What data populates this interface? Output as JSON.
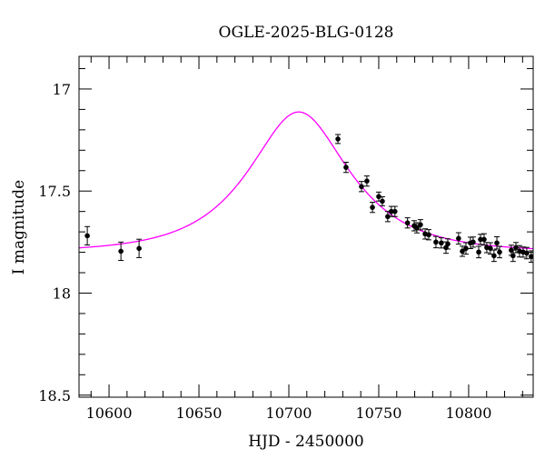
{
  "chart_data": {
    "type": "scatter",
    "title": "OGLE-2025-BLG-0128",
    "xlabel": "HJD - 2450000",
    "ylabel": "I magnitude",
    "xlim": [
      10583.3,
      10835.9
    ],
    "ylim": [
      18.51,
      16.84
    ],
    "y_inverted": true,
    "grid": false,
    "x_ticks": [
      10600,
      10650,
      10700,
      10750,
      10800
    ],
    "x_tick_labels": [
      "10600",
      "10650",
      "10700",
      "10750",
      "10800"
    ],
    "y_ticks": [
      17,
      17.5,
      18,
      18.5
    ],
    "y_tick_labels": [
      "17",
      "17.5",
      "18",
      "18.5"
    ],
    "x_minor_step": 10,
    "y_minor_step": 0.1,
    "colors": {
      "points": "#000000",
      "model": "#ff00ff",
      "frame": "#000000"
    },
    "series": [
      {
        "kind": "points-with-errorbars",
        "x": [
          10587.9,
          10606.6,
          10616.7,
          10727.3,
          10731.8,
          10740.4,
          10743.4,
          10746.5,
          10750.0,
          10752.0,
          10755.0,
          10757.0,
          10759.0,
          10766.0,
          10769.7,
          10771.2,
          10773.2,
          10775.8,
          10777.8,
          10781.8,
          10784.8,
          10787.4,
          10788.4,
          10794.4,
          10796.5,
          10798.5,
          10801.0,
          10802.5,
          10805.6,
          10806.6,
          10808.6,
          10810.1,
          10812.1,
          10814.1,
          10815.7,
          10817.2,
          10823.7,
          10824.7,
          10826.3,
          10828.3,
          10830.3,
          10832.3,
          10834.8
        ],
        "y": [
          17.719,
          17.795,
          17.781,
          17.245,
          17.384,
          17.478,
          17.451,
          17.58,
          17.527,
          17.55,
          17.625,
          17.6,
          17.6,
          17.656,
          17.67,
          17.68,
          17.665,
          17.71,
          17.714,
          17.75,
          17.754,
          17.777,
          17.759,
          17.732,
          17.795,
          17.781,
          17.754,
          17.75,
          17.799,
          17.737,
          17.737,
          17.777,
          17.781,
          17.817,
          17.754,
          17.799,
          17.79,
          17.817,
          17.777,
          17.795,
          17.799,
          17.804,
          17.821
        ],
        "yerr": [
          0.045,
          0.045,
          0.045,
          0.022,
          0.025,
          0.025,
          0.025,
          0.025,
          0.022,
          0.022,
          0.025,
          0.025,
          0.025,
          0.025,
          0.025,
          0.025,
          0.025,
          0.025,
          0.025,
          0.028,
          0.025,
          0.028,
          0.025,
          0.028,
          0.025,
          0.028,
          0.028,
          0.025,
          0.028,
          0.025,
          0.028,
          0.025,
          0.028,
          0.028,
          0.03,
          0.028,
          0.025,
          0.028,
          0.025,
          0.028,
          0.025,
          0.028,
          0.028
        ]
      },
      {
        "kind": "model-curve",
        "model": "point-lens",
        "t0": 10705.5,
        "u0": 0.6,
        "tE": 44,
        "baseline_mag": 17.8
      }
    ]
  }
}
